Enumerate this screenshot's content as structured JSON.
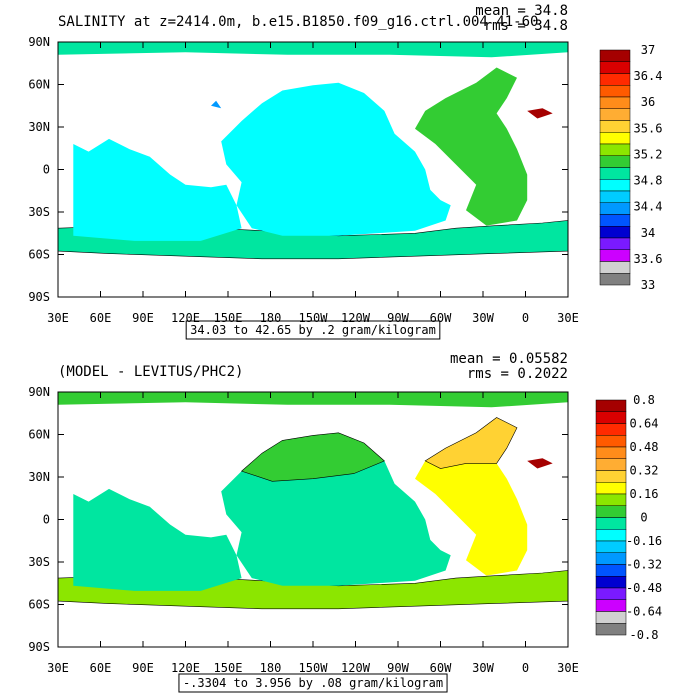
{
  "chart_data": [
    {
      "type": "heatmap",
      "title": "SALINITY at z=2414.0m, b.e15.B1850.f09_g16.ctrl.004   41-60",
      "stats": {
        "mean": "mean = 34.8",
        "rms": "rms = 34.8"
      },
      "range_label": "34.03 to 42.65 by .2 gram/kilogram",
      "x_ticks": [
        "30E",
        "60E",
        "90E",
        "120E",
        "150E",
        "180",
        "150W",
        "120W",
        "90W",
        "60W",
        "30W",
        "0",
        "30E"
      ],
      "y_ticks": [
        "90N",
        "60N",
        "30N",
        "0",
        "30S",
        "60S",
        "90S"
      ],
      "colorbar": {
        "labels": [
          "37",
          "36.4",
          "36",
          "35.6",
          "35.2",
          "34.8",
          "34.4",
          "34",
          "33.6",
          "33"
        ],
        "colors": [
          "#a50000",
          "#d90000",
          "#ff2a00",
          "#ff5a00",
          "#ff8c1a",
          "#ffad33",
          "#ffd233",
          "#ffff00",
          "#8ce600",
          "#33cc33",
          "#00e6a0",
          "#00ffff",
          "#00ccff",
          "#0099ff",
          "#0055ff",
          "#0000d0",
          "#7a1aff",
          "#cc00ff",
          "#d0d0d0",
          "#808080"
        ]
      },
      "regions": [
        {
          "name": "indo-pacific",
          "value": 34.7,
          "color": "#00ffff"
        },
        {
          "name": "southern-ocean",
          "value": 34.7,
          "color": "#00e6a0"
        },
        {
          "name": "atlantic",
          "value": 35.0,
          "color": "#33cc33"
        },
        {
          "name": "arctic",
          "value": 34.9,
          "color": "#00e6a0"
        },
        {
          "name": "mediterranean",
          "value": 37.0,
          "color": "#a50000"
        },
        {
          "name": "japan-sea",
          "value": 34.1,
          "color": "#0099ff"
        }
      ]
    },
    {
      "type": "heatmap",
      "title": "(MODEL - LEVITUS/PHC2)",
      "stats": {
        "mean": "mean = 0.05582",
        "rms": "rms = 0.2022"
      },
      "range_label": "-.3304 to 3.956 by .08 gram/kilogram",
      "x_ticks": [
        "30E",
        "60E",
        "90E",
        "120E",
        "150E",
        "180",
        "150W",
        "120W",
        "90W",
        "60W",
        "30W",
        "0",
        "30E"
      ],
      "y_ticks": [
        "90N",
        "60N",
        "30N",
        "0",
        "30S",
        "60S",
        "90S"
      ],
      "colorbar": {
        "labels": [
          "0.8",
          "0.64",
          "0.48",
          "0.32",
          "0.16",
          "0",
          "-0.16",
          "-0.32",
          "-0.48",
          "-0.64",
          "-0.8"
        ],
        "colors": [
          "#a50000",
          "#d90000",
          "#ff2a00",
          "#ff5a00",
          "#ff8c1a",
          "#ffad33",
          "#ffd233",
          "#ffff00",
          "#8ce600",
          "#33cc33",
          "#00e6a0",
          "#00ffff",
          "#00ccff",
          "#0099ff",
          "#0055ff",
          "#0000d0",
          "#7a1aff",
          "#cc00ff",
          "#d0d0d0",
          "#808080"
        ]
      },
      "regions": [
        {
          "name": "southern-ocean",
          "value": 0.12,
          "color": "#8ce600"
        },
        {
          "name": "north-pacific",
          "value": 0.1,
          "color": "#33cc33"
        },
        {
          "name": "tropical-pacific",
          "value": -0.05,
          "color": "#00e6a0"
        },
        {
          "name": "atlantic",
          "value": 0.3,
          "color": "#ffff00"
        },
        {
          "name": "north-atlantic",
          "value": 0.35,
          "color": "#ffd233"
        },
        {
          "name": "arctic",
          "value": 0.1,
          "color": "#33cc33"
        },
        {
          "name": "mediterranean",
          "value": 0.8,
          "color": "#a50000"
        }
      ]
    }
  ]
}
